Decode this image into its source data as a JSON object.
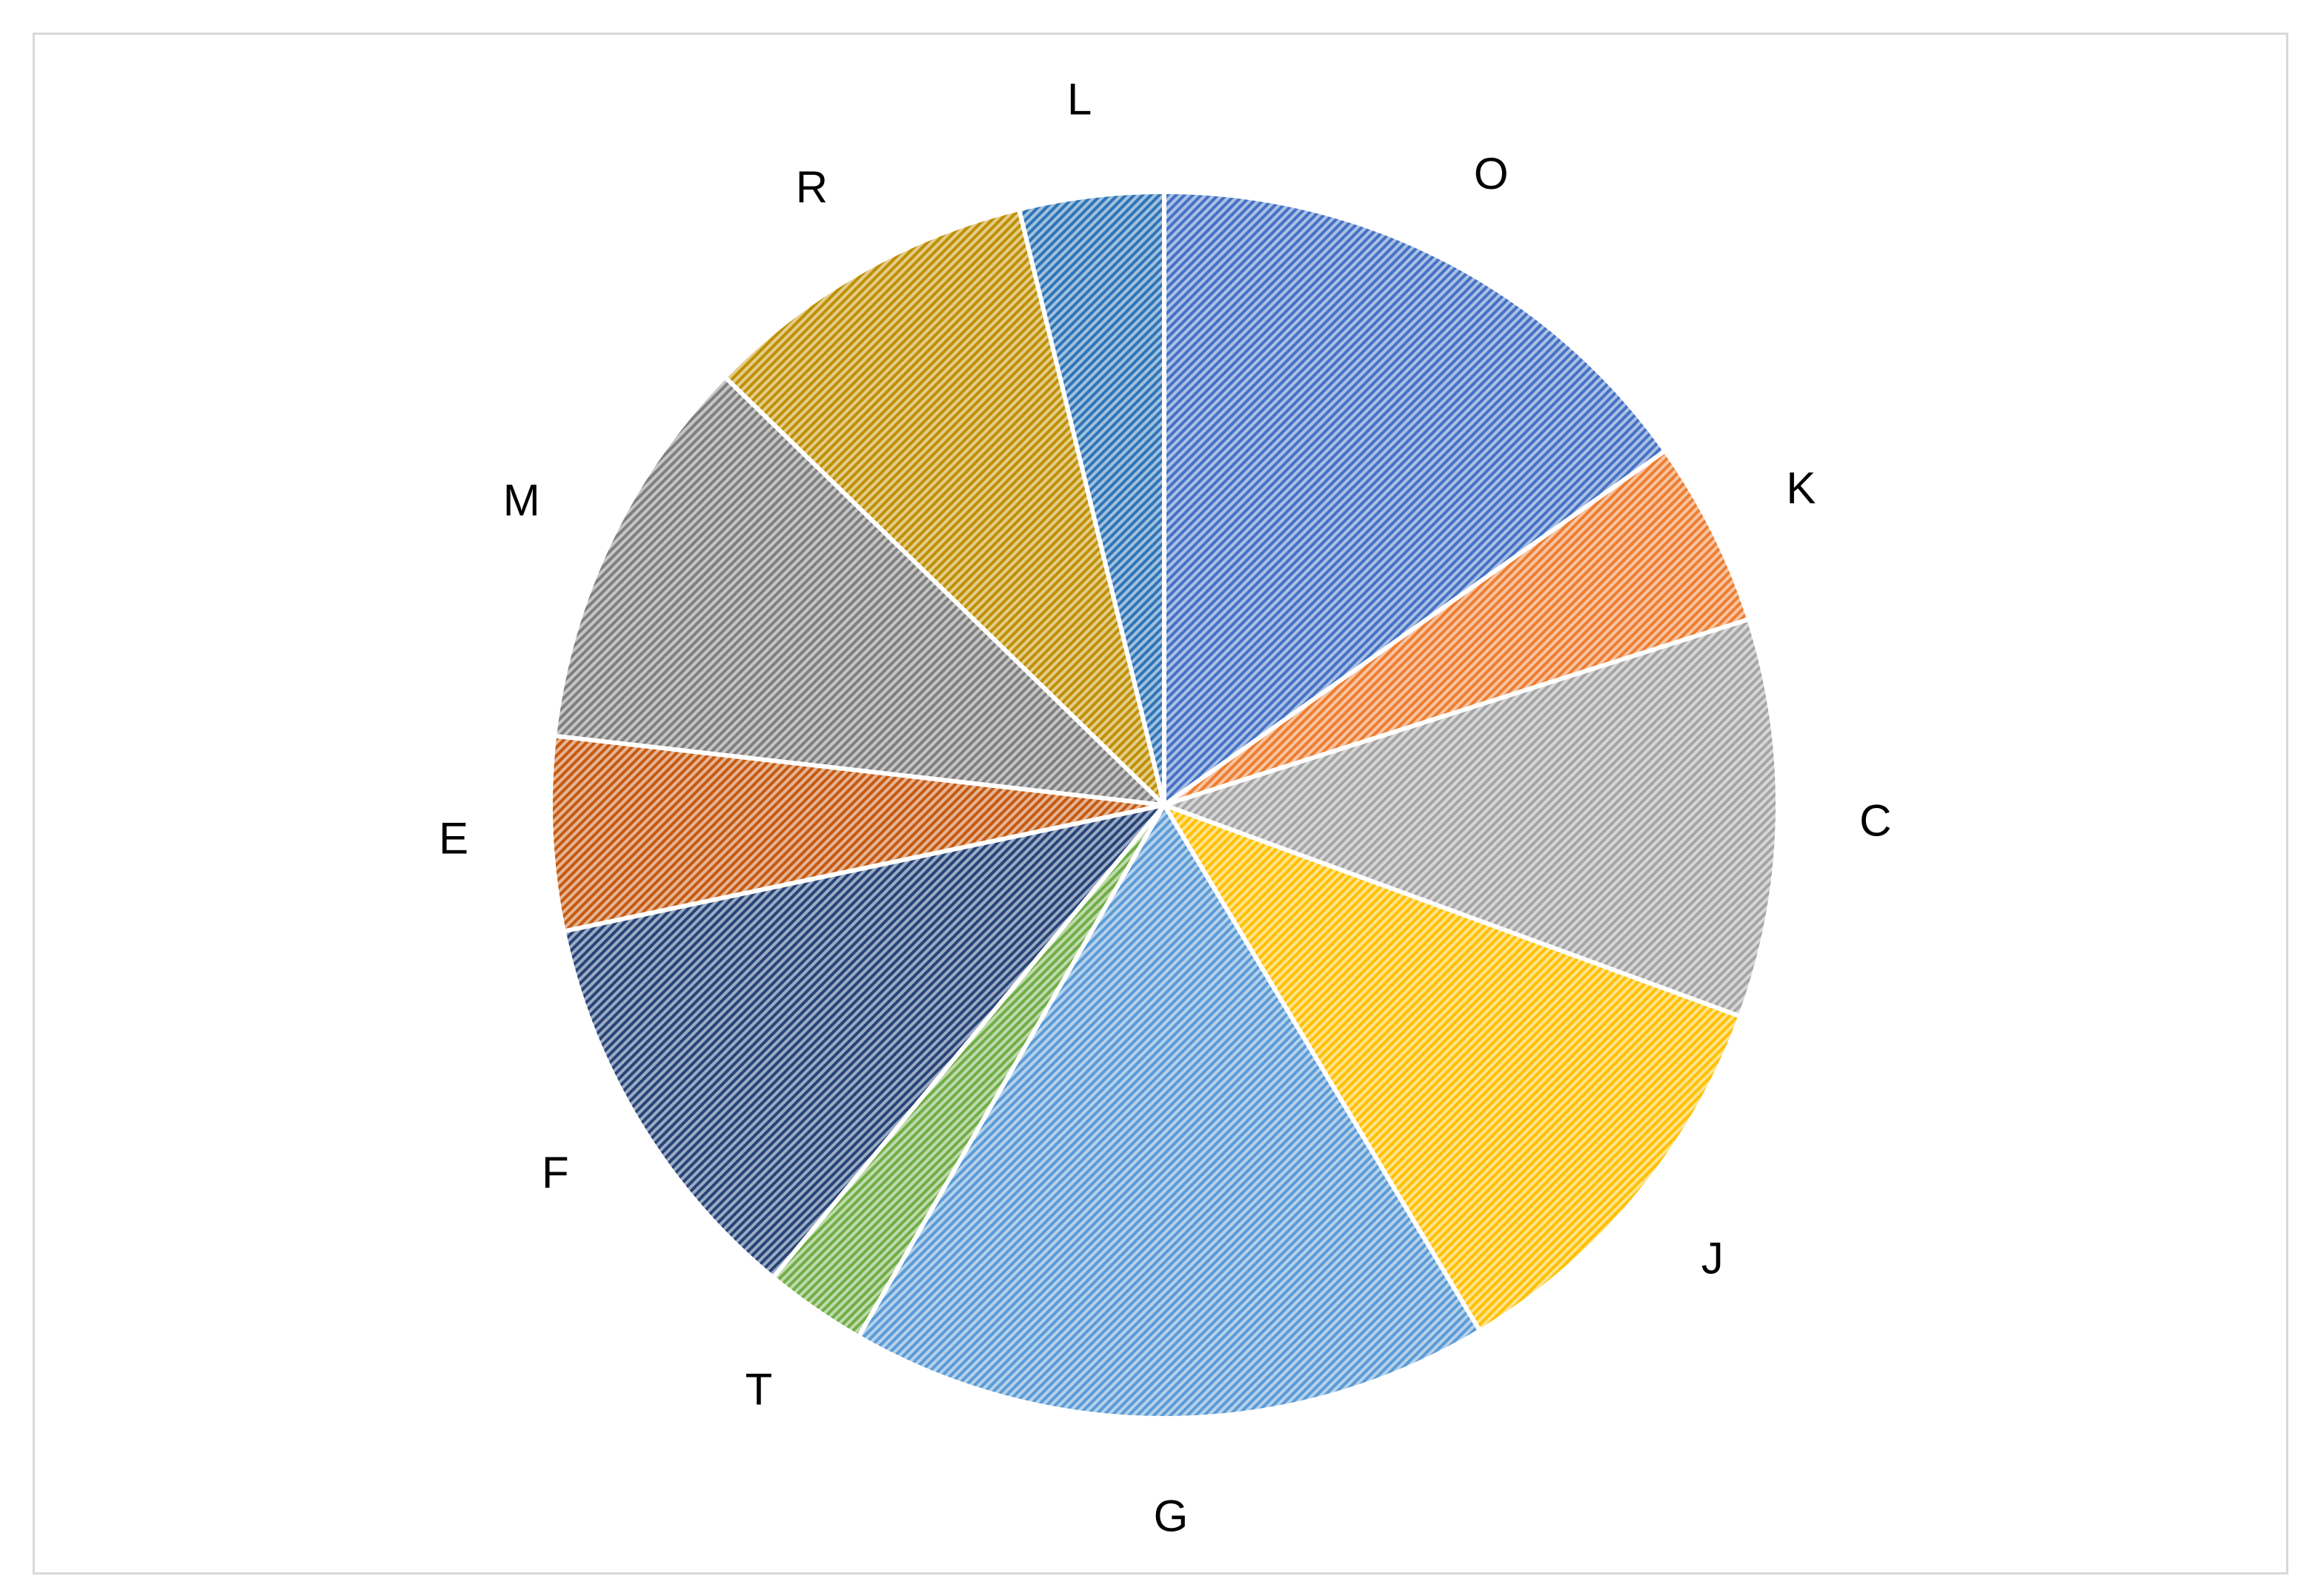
{
  "chart_data": {
    "type": "pie",
    "start_angle_deg": 0,
    "direction": "clockwise",
    "categories": [
      "O",
      "K",
      "C",
      "J",
      "G",
      "T",
      "F",
      "E",
      "M",
      "R",
      "L"
    ],
    "values": [
      15.2,
      4.9,
      10.5,
      10.8,
      16.9,
      2.7,
      10.7,
      5.1,
      10.5,
      8.9,
      3.8
    ],
    "colors": [
      "#4472C4",
      "#ED7D31",
      "#A5A5A5",
      "#FFC000",
      "#5B9BD5",
      "#70AD47",
      "#264478",
      "#C55A11",
      "#7F7F7F",
      "#BF9000",
      "#2E75B6"
    ],
    "label_colors": [
      "#000000",
      "#000000",
      "#375623",
      "#000000",
      "#000000",
      "#000000",
      "#000000",
      "#000000",
      "#000000",
      "#000000",
      "#000000"
    ],
    "title": "",
    "legend": "none",
    "fill_pattern": "diagonal-hatch"
  }
}
